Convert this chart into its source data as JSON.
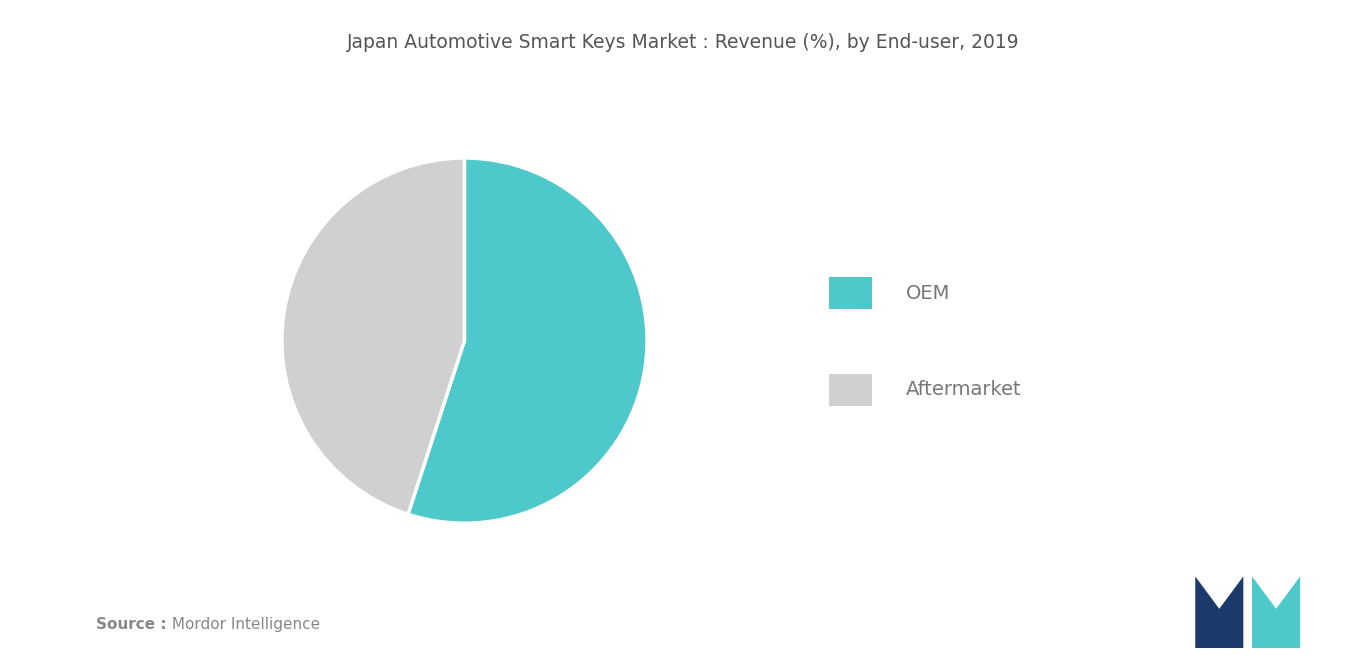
{
  "title": "Japan Automotive Smart Keys Market : Revenue (%), by End-user, 2019",
  "title_fontsize": 13.5,
  "title_color": "#555555",
  "slices": [
    55,
    45
  ],
  "labels": [
    "OEM",
    "Aftermarket"
  ],
  "colors": [
    "#4DC9CB",
    "#D0D0D0"
  ],
  "legend_labels": [
    "OEM",
    "Aftermarket"
  ],
  "legend_fontsize": 14,
  "legend_text_color": "#777777",
  "source_bold": "Source :",
  "source_normal": " Mordor Intelligence",
  "source_fontsize": 11,
  "source_color": "#888888",
  "background_color": "#ffffff",
  "startangle": 90,
  "logo_dark_color": "#1B3A6B",
  "logo_teal_color": "#4DC9CB"
}
